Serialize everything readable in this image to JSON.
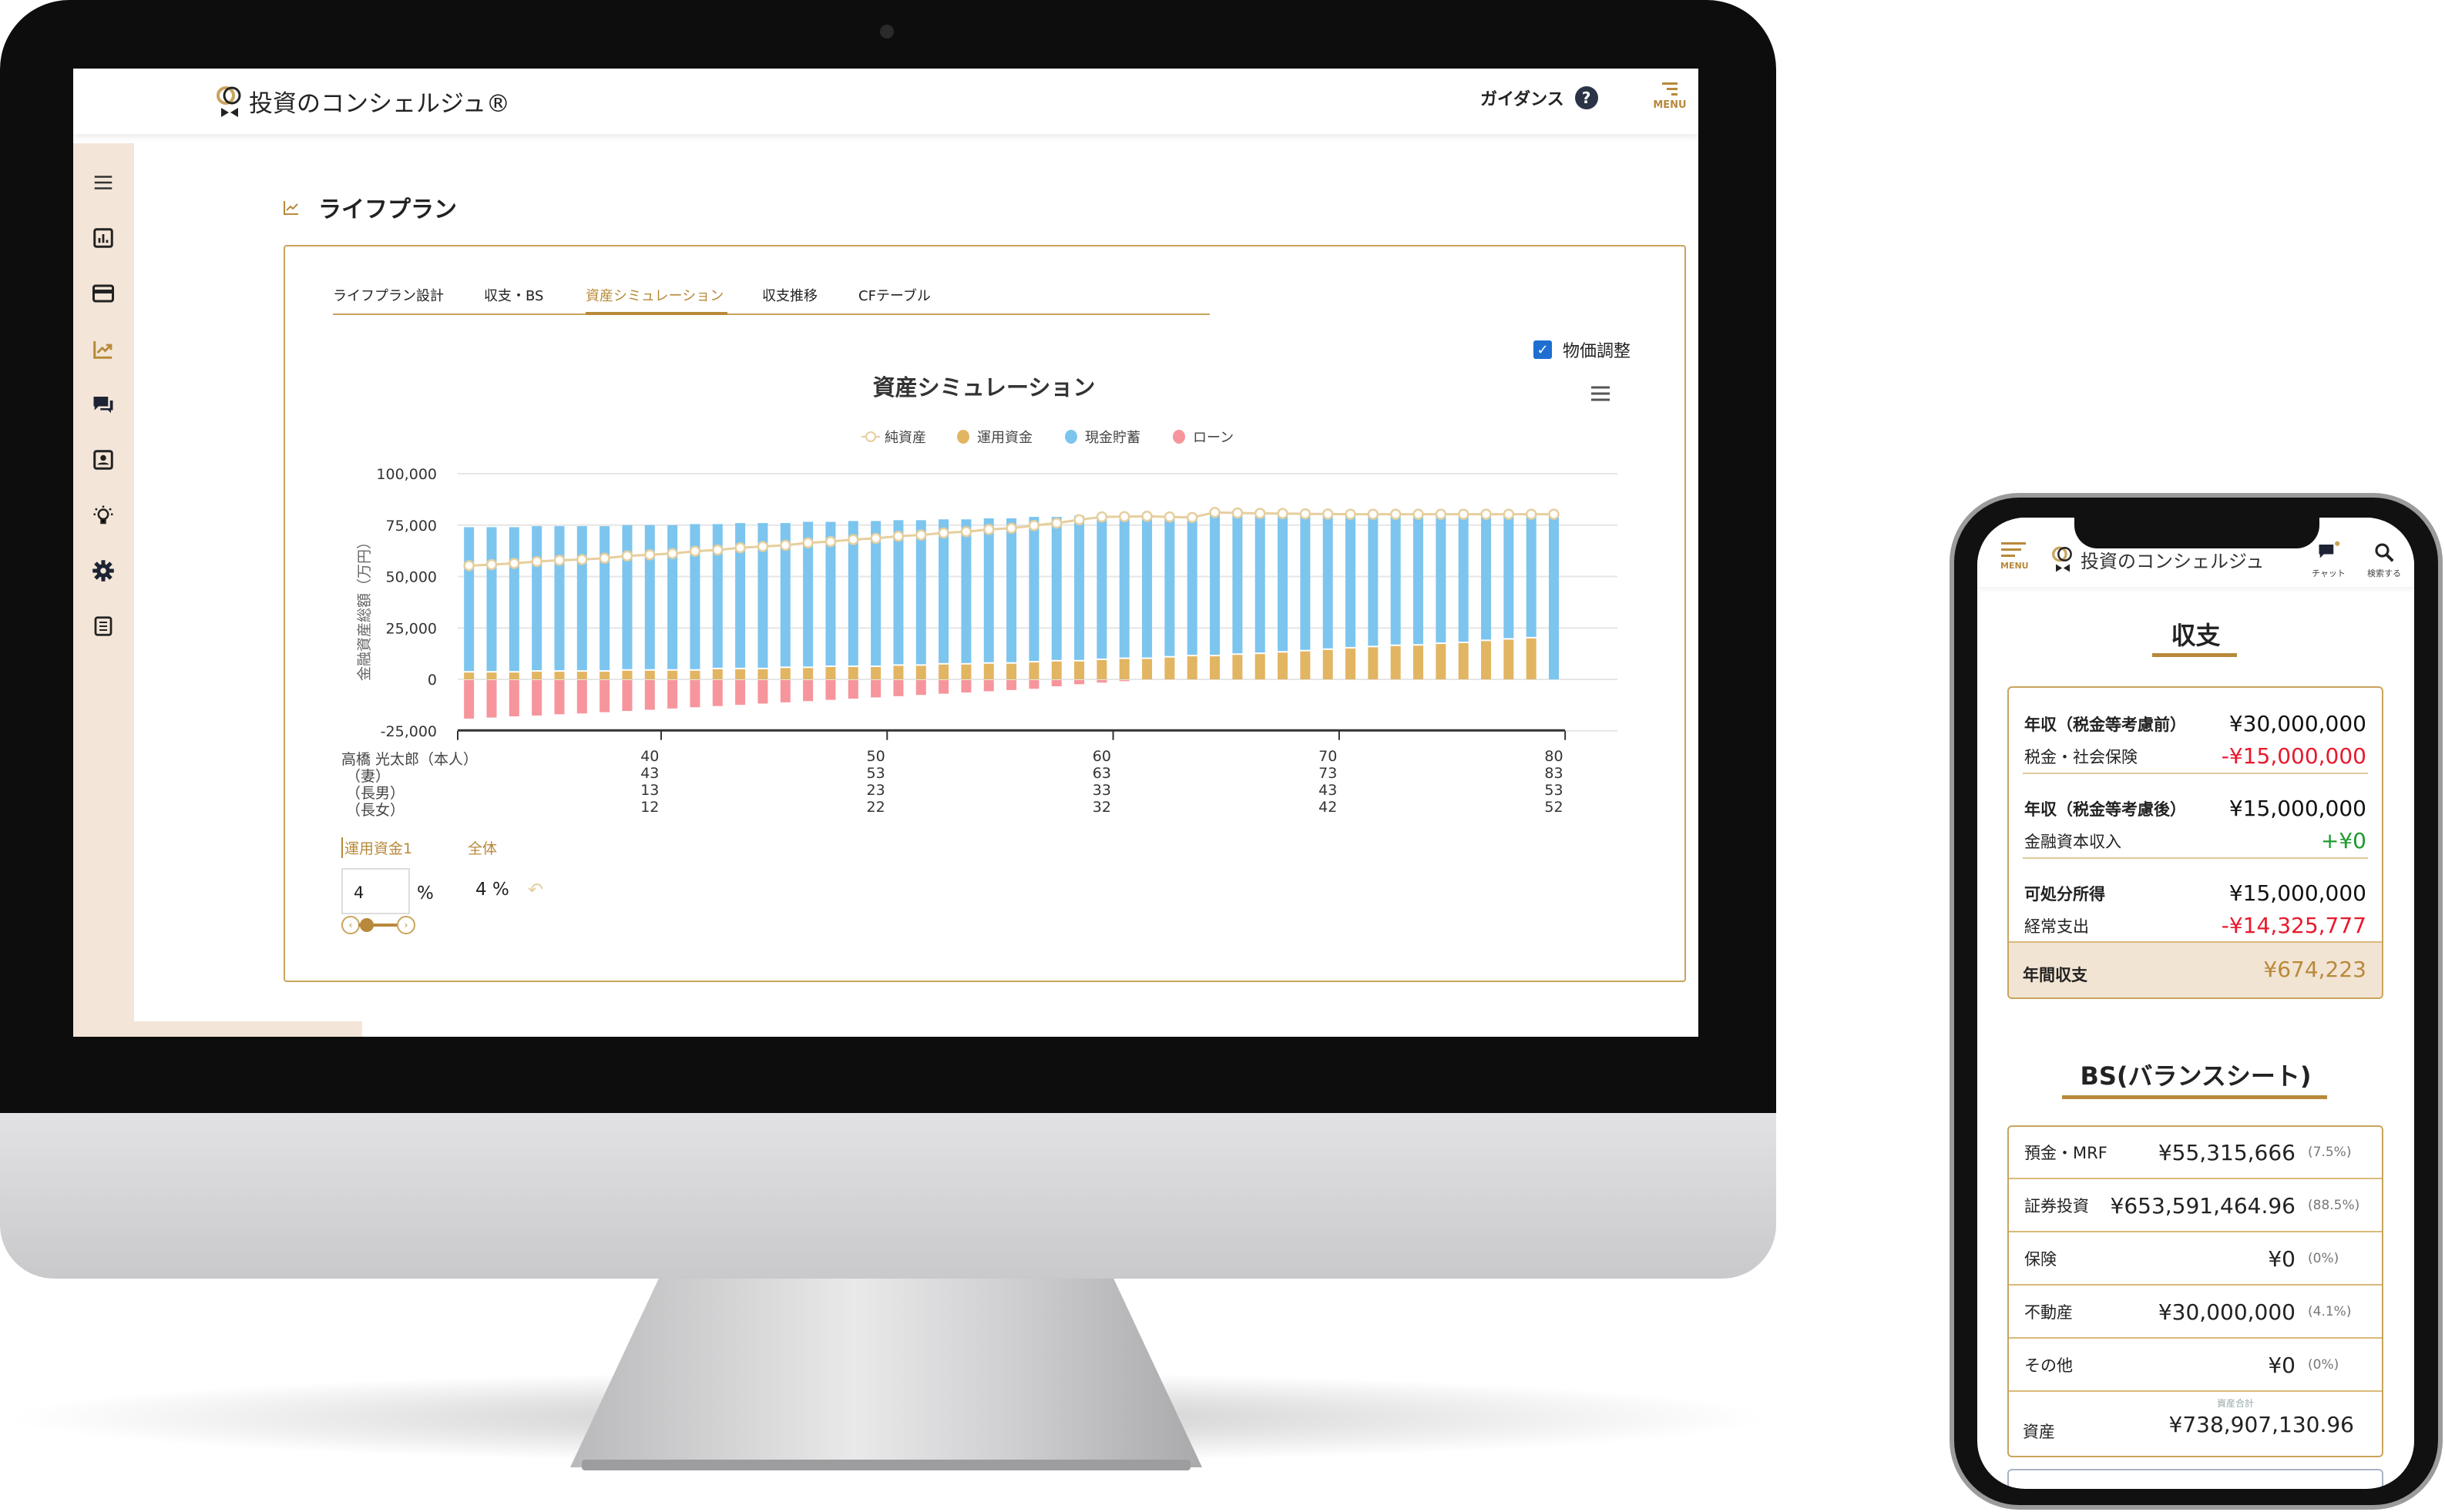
{
  "colors": {
    "accent": "#b8893a",
    "sidebar_bg": "#f3e6d8",
    "net": "#e6cf9e",
    "invest": "#e2b562",
    "cash": "#7cc5ef",
    "loan": "#f7959c",
    "negative": "#e8192c",
    "positive": "#1e9a2e"
  },
  "desktop": {
    "header": {
      "logo": "投資のコンシェルジュ®",
      "guidance": "ガイダンス",
      "help_icon": "question-circle",
      "menu_label": "MENU"
    },
    "sidebar": {
      "items": [
        {
          "icon": "menu-icon"
        },
        {
          "icon": "bar-chart-icon"
        },
        {
          "icon": "credit-card-icon"
        },
        {
          "icon": "trend-chart-icon",
          "active": true
        },
        {
          "icon": "chat-icon"
        },
        {
          "icon": "contact-card-icon"
        },
        {
          "icon": "lightbulb-icon"
        },
        {
          "icon": "gear-icon"
        },
        {
          "icon": "document-icon"
        }
      ]
    },
    "page_title": "ライフプラン",
    "tabs": [
      {
        "label": "ライフプラン設計"
      },
      {
        "label": "収支・BS"
      },
      {
        "label": "資産シミュレーション",
        "active": true
      },
      {
        "label": "収支推移"
      },
      {
        "label": "CFテーブル"
      }
    ],
    "price_adjust": {
      "label": "物価調整",
      "checked": true
    },
    "controls": {
      "tab1": "運用資金1",
      "tab2": "全体",
      "input_value": "4",
      "unit": "%",
      "overall": "4 %",
      "slider_value": 4
    }
  },
  "chart_data": {
    "type": "bar",
    "stacked": true,
    "title": "資産シミュレーション",
    "ylabel": "金融資産総額（万円）",
    "ylim": [
      -25000,
      100000
    ],
    "yticks": [
      "100,000",
      "75,000",
      "50,000",
      "25,000",
      "0",
      "-25,000"
    ],
    "ytick_values": [
      100000,
      75000,
      50000,
      25000,
      0,
      -25000
    ],
    "grid": true,
    "legend_position": "top",
    "x": [
      32,
      33,
      34,
      35,
      36,
      37,
      38,
      39,
      40,
      41,
      42,
      43,
      44,
      45,
      46,
      47,
      48,
      49,
      50,
      51,
      52,
      53,
      54,
      55,
      56,
      57,
      58,
      59,
      60,
      61,
      62,
      63,
      64,
      65,
      66,
      67,
      68,
      69,
      70,
      71,
      72,
      73,
      74,
      75,
      76,
      77,
      78,
      79,
      80
    ],
    "series": [
      {
        "name": "純資産",
        "type": "line",
        "values": [
          55300,
          55800,
          56400,
          57300,
          57900,
          58300,
          58900,
          60000,
          60600,
          61200,
          62300,
          62900,
          64000,
          64600,
          65200,
          66400,
          67000,
          68000,
          68600,
          69600,
          70200,
          71200,
          71800,
          72900,
          73500,
          74800,
          76000,
          77600,
          79000,
          79100,
          79300,
          79000,
          78700,
          81200,
          80900,
          80700,
          80600,
          80500,
          80400,
          80300,
          80300,
          80300,
          80300,
          80300,
          80300,
          80300,
          80300,
          80300,
          80300
        ]
      },
      {
        "name": "運用資金",
        "type": "bar",
        "values": [
          3300,
          3300,
          3300,
          3700,
          3700,
          3700,
          3700,
          4200,
          4200,
          4200,
          4200,
          4900,
          4900,
          4900,
          5500,
          5500,
          6000,
          6000,
          6000,
          6600,
          6600,
          7200,
          7200,
          7600,
          7600,
          8200,
          8700,
          8700,
          9400,
          9900,
          9900,
          10600,
          11200,
          11200,
          11900,
          12300,
          13000,
          13600,
          14300,
          15000,
          15600,
          16200,
          16400,
          17200,
          17600,
          18600,
          19300,
          19900,
          0
        ]
      },
      {
        "name": "現金貯蓄",
        "type": "bar",
        "values": [
          70700,
          70700,
          70700,
          70800,
          70800,
          70800,
          70800,
          70800,
          70800,
          70800,
          71300,
          70600,
          71100,
          71100,
          70500,
          71100,
          70600,
          71000,
          71000,
          70800,
          70800,
          70600,
          70600,
          70700,
          70700,
          70800,
          70300,
          70900,
          70800,
          69700,
          69400,
          68400,
          67500,
          70000,
          69000,
          68400,
          67600,
          66900,
          66100,
          65300,
          64700,
          64100,
          63900,
          63100,
          62700,
          61700,
          61000,
          60400,
          80300
        ]
      },
      {
        "name": "ローン",
        "type": "bar",
        "values": [
          -18700,
          -18200,
          -17600,
          -17200,
          -16600,
          -16200,
          -15600,
          -15000,
          -14400,
          -13800,
          -13200,
          -12600,
          -12000,
          -11400,
          -10800,
          -10200,
          -9600,
          -9000,
          -8400,
          -7800,
          -7200,
          -6600,
          -6000,
          -5400,
          -4800,
          -4200,
          -3000,
          -2000,
          -1200,
          -500,
          0,
          0,
          0,
          0,
          0,
          0,
          0,
          0,
          0,
          0,
          0,
          0,
          0,
          0,
          0,
          0,
          0,
          0,
          0
        ]
      }
    ],
    "age_rows": [
      {
        "label": "高橋 光太郎（本人）",
        "ages": [
          "40",
          "50",
          "60",
          "70",
          "80"
        ]
      },
      {
        "label": "（妻）",
        "ages": [
          "43",
          "53",
          "63",
          "73",
          "83"
        ]
      },
      {
        "label": "（長男）",
        "ages": [
          "13",
          "23",
          "33",
          "43",
          "53"
        ]
      },
      {
        "label": "（長女）",
        "ages": [
          "12",
          "22",
          "32",
          "42",
          "52"
        ]
      }
    ],
    "age_tick_x": [
      40,
      50,
      60,
      70,
      80
    ]
  },
  "mobile": {
    "header": {
      "menu_label": "MENU",
      "logo": "投資のコンシェルジュ",
      "chat": "チャット",
      "search": "検索する"
    },
    "income": {
      "title": "収支",
      "groups": [
        [
          {
            "label": "年収（税金等考慮前）",
            "value": "¥30,000,000",
            "tone": "normal"
          },
          {
            "label": "税金・社会保険",
            "value": "-¥15,000,000",
            "tone": "negative"
          }
        ],
        [
          {
            "label": "年収（税金等考慮後）",
            "value": "¥15,000,000",
            "tone": "normal"
          },
          {
            "label": "金融資本収入",
            "value": "+¥0",
            "tone": "positive"
          }
        ],
        [
          {
            "label": "可処分所得",
            "value": "¥15,000,000",
            "tone": "normal"
          },
          {
            "label": "経常支出",
            "value": "-¥14,325,777",
            "tone": "negative"
          }
        ]
      ],
      "total": {
        "label": "年間収支",
        "value": "¥674,223"
      }
    },
    "bs": {
      "title": "BS(バランスシート)",
      "rows": [
        {
          "label": "預金・MRF",
          "value": "¥55,315,666",
          "pct": "(7.5%)"
        },
        {
          "label": "証券投資",
          "value": "¥653,591,464.96",
          "pct": "(88.5%)"
        },
        {
          "label": "保険",
          "value": "¥0",
          "pct": "(0%)"
        },
        {
          "label": "不動産",
          "value": "¥30,000,000",
          "pct": "(4.1%)"
        },
        {
          "label": "その他",
          "value": "¥0",
          "pct": "(0%)"
        }
      ],
      "total": {
        "caption": "資産合計",
        "label": "資産",
        "value": "¥738,907,130.96"
      }
    }
  }
}
